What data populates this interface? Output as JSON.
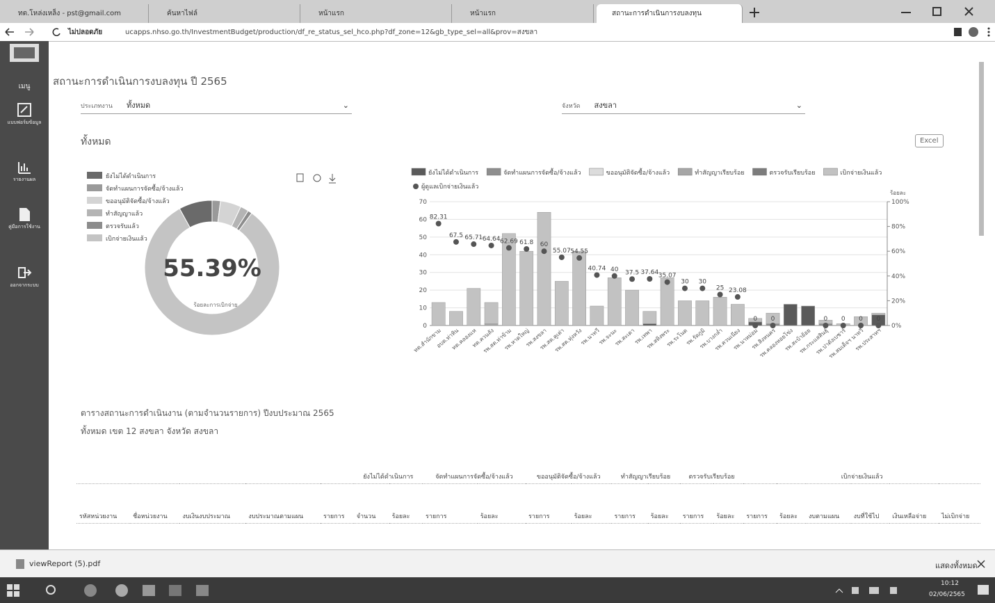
{
  "browser": {
    "tabs": [
      "ทต.โหล่งเหล็ง - pst@gmail.com",
      "ค้นหาไฟล์",
      "หน้าแรก",
      "หน้าแรก",
      "สถานะการดำเนินการงบลงทุน"
    ],
    "security": "ไม่ปลอดภัย",
    "url": "ucapps.nhso.go.th/InvestmentBudget/production/df_re_status_sel_hco.php?df_zone=12&gb_type_sel=all&prov=สงขลา",
    "download_file": "viewReport (5).pdf",
    "show_all": "แสดงทั้งหมด"
  },
  "taskbar": {
    "time": "10:12",
    "date": "02/06/2565"
  },
  "sidebar": {
    "menu": "เมนู",
    "items": [
      "แบบฟอร์มข้อมูล",
      "รายงานผล",
      "คู่มือการใช้งาน",
      "ออกจากระบบ"
    ]
  },
  "page": {
    "title": "สถานะการดำเนินการงบลงทุน ปี 2565",
    "filter_labels": [
      "ประเภทงาน",
      "จังหวัด"
    ],
    "filter_values": [
      "ทั้งหมด",
      "สงขลา"
    ],
    "section": "ทั้งหมด",
    "excel": "Excel",
    "report_title": "ตารางสถานะการดำเนินงาน (ตามจำนวนรายการ) ปีงบประมาณ 2565",
    "report_subtitle": "ทั้งหมด เขต 12 สงขลา จังหวัด สงขลา"
  },
  "table": {
    "group_headers": [
      "ยังไม่ได้ดำเนินการ",
      "จัดทำแผนการจัดซื้อ/จ้างแล้ว",
      "ขออนุมัติจัดซื้อ/จ้างแล้ว",
      "ทำสัญญาเรียบร้อย",
      "ตรวจรับเรียบร้อย",
      "เบิกจ่ายเงินแล้ว"
    ],
    "column_headers": [
      "รหัสหน่วยงาน",
      "ชื่อหน่วยงาน",
      "งบเงินงบประมาณ",
      "งบประมาณตามแผน",
      "รายการ",
      "จำนวน",
      "ร้อยละ",
      "รายการ",
      "ร้อยละ",
      "รายการ",
      "ร้อยละ",
      "รายการ",
      "ร้อยละ",
      "รายการ",
      "ร้อยละ",
      "รายการ",
      "ร้อยละ",
      "งบตามแผน",
      "งบที่ใช้ไป",
      "เงินเหลือจ่าย",
      "ไม่เบิกจ่าย"
    ]
  },
  "chart_data": [
    {
      "type": "donut",
      "categories": [
        "ยังไม่ได้ดำเนินการ",
        "จัดทำแผนการจัดซื้อ/จ้างแล้ว",
        "ขออนุมัติจัดซื้อ/จ้างแล้ว",
        "ทำสัญญาแล้ว",
        "ตรวจรับแล้ว",
        "เบิกจ่ายเงินแล้ว"
      ],
      "values": [
        8,
        2,
        5,
        2,
        1,
        82
      ],
      "colors": [
        "#6a6a6a",
        "#9a9a9a",
        "#d4d4d4",
        "#b4b4b4",
        "#8c8c8c",
        "#c4c4c4"
      ],
      "center_label": "55.39%",
      "center_caption": "ร้อยละการเบิกจ่าย"
    },
    {
      "type": "combo",
      "categories": [
        "ทต.สำนักขาม",
        "อบต.ท่าหิน",
        "ทต.คลองแห",
        "ทต.ควนลัง",
        "รพ.สต.ท่าข้าม",
        "รพ.หาดใหญ่",
        "รพ.สงขลา",
        "รพ.สต.คูเต่า",
        "รพ.สต.ทุ่งหวัง",
        "รพ.นาทวี",
        "รพ.จะนะ",
        "รพ.สะเดา",
        "รพ.เทพา",
        "รพ.สทิงพระ",
        "รพ.ระโนด",
        "รพ.รัตภูมิ",
        "รพ.บางกล่ำ",
        "รพ.ควนเนียง",
        "รพ.นาหม่อม",
        "รพ.สิงหนคร",
        "รพ.คลองหอยโข่ง",
        "รพ.สะบ้าย้อย",
        "รพ.กระแสสินธุ์",
        "รพ.ปาดังเบซาร์",
        "รพ.สมเด็จฯ นาทวี",
        "รพ.ประสาทฯ"
      ],
      "series": [
        {
          "name": "ยังไม่ได้ดำเนินการ",
          "color": "#5a5a5a",
          "values": [
            0,
            0,
            0,
            0,
            0,
            0,
            0,
            0,
            0,
            0,
            0,
            0,
            1,
            0,
            0,
            0,
            0,
            0,
            2,
            0,
            12,
            11,
            0,
            0,
            0,
            6
          ]
        },
        {
          "name": "จัดทำแผนการจัดซื้อ/จ้างแล้ว",
          "color": "#8e8e8e",
          "values": [
            0,
            0,
            0,
            0,
            0,
            0,
            0,
            0,
            0,
            0,
            0,
            0,
            0,
            0,
            0,
            0,
            0,
            0,
            0,
            1,
            0,
            0,
            1,
            0,
            0,
            0
          ]
        },
        {
          "name": "ขออนุมัติจัดซื้อ/จ้างแล้ว",
          "color": "#dcdcdc",
          "values": [
            0,
            0,
            0,
            0,
            0,
            0,
            0,
            0,
            0,
            0,
            0,
            0,
            0,
            0,
            0,
            0,
            0,
            0,
            0,
            0,
            0,
            0,
            0,
            0,
            0,
            0
          ]
        },
        {
          "name": "ทำสัญญาเรียบร้อย",
          "color": "#a6a6a6",
          "values": [
            0,
            0,
            0,
            1,
            0,
            0,
            0,
            0,
            0,
            0,
            0,
            0,
            0,
            0,
            0,
            0,
            0,
            0,
            0,
            0,
            0,
            0,
            0,
            0,
            0,
            0
          ]
        },
        {
          "name": "ตรวจรับเรียบร้อย",
          "color": "#7c7c7c",
          "values": [
            0,
            0,
            0,
            0,
            0,
            0,
            0,
            0,
            0,
            0,
            0,
            0,
            0,
            0,
            0,
            0,
            0,
            0,
            0,
            0,
            0,
            0,
            0,
            0,
            0,
            0
          ]
        },
        {
          "name": "เบิกจ่ายเงินแล้ว",
          "color": "#c2c2c2",
          "values": [
            13,
            8,
            21,
            12,
            52,
            42,
            64,
            25,
            42,
            11,
            27,
            20,
            7,
            27,
            14,
            14,
            16,
            12,
            2,
            6,
            0,
            0,
            2,
            1,
            5,
            1
          ]
        },
        {
          "name": "ผู้ดูแลเบิกจ่ายเงินแล้ว",
          "color": "#555555",
          "axis": "y2",
          "values": [
            82.31,
            67.5,
            65.71,
            64.64,
            62.69,
            61.8,
            60,
            55.07,
            54.55,
            40.74,
            40,
            37.5,
            37.64,
            35.07,
            30,
            30,
            25,
            23.08,
            0,
            0,
            null,
            null,
            0,
            0,
            0,
            0
          ]
        }
      ],
      "ylim": [
        0,
        70
      ],
      "yticks": [
        0,
        10,
        20,
        30,
        40,
        50,
        60,
        70
      ],
      "y2lim": [
        0,
        100
      ],
      "y2ticks": [
        {
          "value": 0,
          "label": "0%"
        },
        {
          "value": 20,
          "label": "20%"
        },
        {
          "value": 40,
          "label": "40%"
        },
        {
          "value": 60,
          "label": "60%"
        },
        {
          "value": 80,
          "label": "80%"
        },
        {
          "value": 100,
          "label": "100%"
        }
      ],
      "y2_label": "ร้อยละ",
      "grid": true,
      "legend": "top"
    }
  ]
}
